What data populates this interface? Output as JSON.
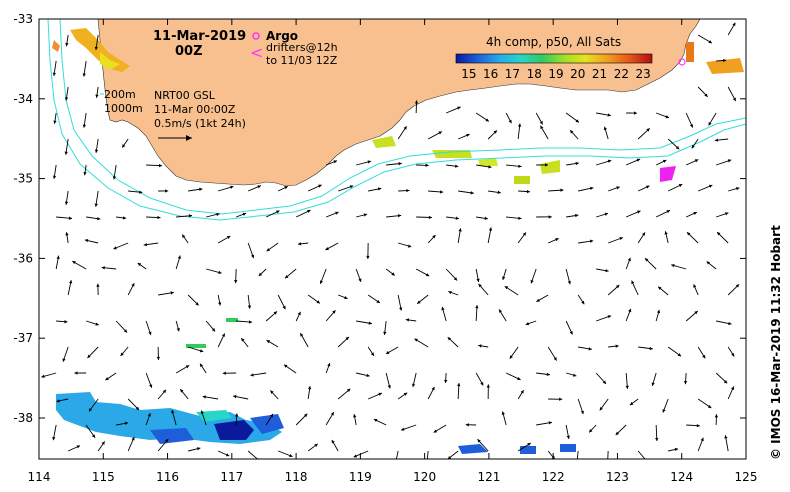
{
  "header": {
    "date": "11-Mar-2019",
    "time": "00Z"
  },
  "legend": {
    "argo_label": "Argo",
    "drifters_line1": "drifters@12h",
    "drifters_line2": "to 11/03 12Z",
    "colorbar_title": "4h comp, p50, All Sats",
    "colorbar_ticks": [
      "15",
      "16",
      "17",
      "18",
      "19",
      "20",
      "21",
      "22",
      "23"
    ],
    "colorbar_colors": [
      "#0a1a9a",
      "#1e5ed8",
      "#2aa8e8",
      "#28d6c8",
      "#34c860",
      "#9ee02c",
      "#e8e020",
      "#f0a020",
      "#e85a18",
      "#b01010"
    ]
  },
  "annotations": {
    "isobath_200": "200m",
    "isobath_1000": "1000m",
    "product": "NRT00 GSL",
    "product_time": "11-Mar 00:00Z",
    "scale": "0.5m/s (1kt 24h)"
  },
  "credit": "© IMOS 16-Mar-2019 11:32 Hobart",
  "axes": {
    "x_ticks": [
      "114",
      "115",
      "116",
      "117",
      "118",
      "119",
      "120",
      "121",
      "122",
      "123",
      "124",
      "125"
    ],
    "y_ticks": [
      "-33",
      "-34",
      "-35",
      "-36",
      "-37",
      "-38"
    ]
  },
  "colors": {
    "land": "#f7c08e",
    "isobath": "#33dddd",
    "arrow": "#000000",
    "argo": "#ff33ff"
  }
}
